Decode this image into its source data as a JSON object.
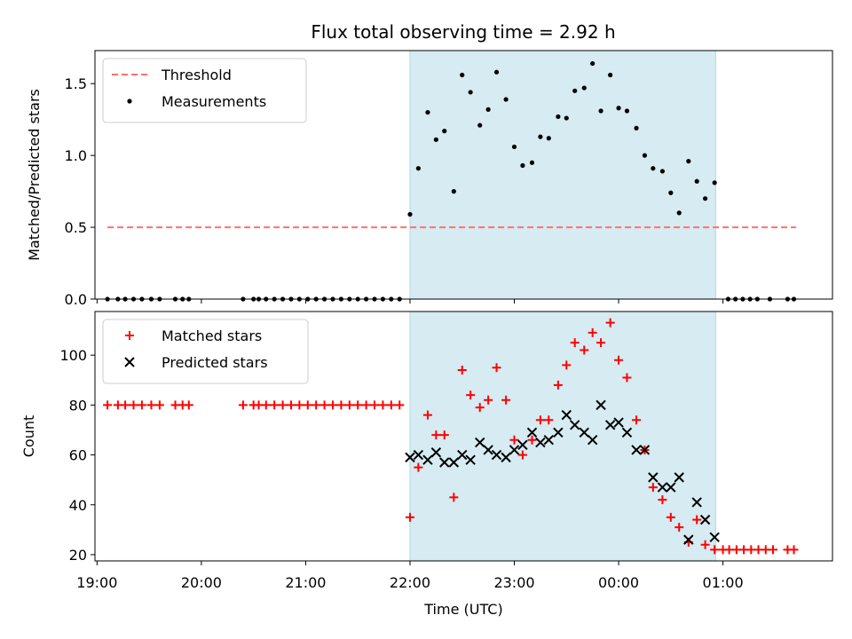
{
  "figure": {
    "title": "Flux total observing time = 2.92 h"
  },
  "colors": {
    "shade": "#add8e6",
    "threshold": "#ff7070",
    "matched": "#ff0000",
    "predicted": "#000000",
    "measurements": "#000000"
  },
  "chart_data": [
    {
      "type": "scatter",
      "panel": "top",
      "ylabel": "Matched/Predicted stars",
      "xlabel": "",
      "ylim": [
        0,
        1.73
      ],
      "yticks": [
        "0.0",
        "0.5",
        "1.0",
        "1.5"
      ],
      "ytick_values": [
        0,
        0.5,
        1.0,
        1.5
      ],
      "grid": false,
      "legend_position": "top-left",
      "shaded_region_utc_hours": [
        22.0,
        24.93
      ],
      "threshold": {
        "name": "Threshold",
        "y": 0.5,
        "x_range_utc_hours": [
          19.1,
          25.7
        ]
      },
      "series": [
        {
          "name": "Measurements",
          "points": [
            [
              19.1,
              0
            ],
            [
              19.2,
              0
            ],
            [
              19.27,
              0
            ],
            [
              19.35,
              0
            ],
            [
              19.43,
              0
            ],
            [
              19.52,
              0
            ],
            [
              19.6,
              0
            ],
            [
              19.75,
              0
            ],
            [
              19.82,
              0
            ],
            [
              19.88,
              0
            ],
            [
              20.4,
              0
            ],
            [
              20.5,
              0
            ],
            [
              20.55,
              0
            ],
            [
              20.62,
              0
            ],
            [
              20.7,
              0
            ],
            [
              20.78,
              0
            ],
            [
              20.86,
              0
            ],
            [
              20.94,
              0
            ],
            [
              21.02,
              0
            ],
            [
              21.1,
              0
            ],
            [
              21.18,
              0
            ],
            [
              21.26,
              0
            ],
            [
              21.34,
              0
            ],
            [
              21.42,
              0
            ],
            [
              21.5,
              0
            ],
            [
              21.58,
              0
            ],
            [
              21.66,
              0
            ],
            [
              21.74,
              0
            ],
            [
              21.82,
              0
            ],
            [
              21.9,
              0
            ],
            [
              22.0,
              0.59
            ],
            [
              22.08,
              0.91
            ],
            [
              22.17,
              1.3
            ],
            [
              22.25,
              1.11
            ],
            [
              22.33,
              1.17
            ],
            [
              22.42,
              0.75
            ],
            [
              22.5,
              1.56
            ],
            [
              22.58,
              1.44
            ],
            [
              22.67,
              1.21
            ],
            [
              22.75,
              1.32
            ],
            [
              22.83,
              1.58
            ],
            [
              22.92,
              1.39
            ],
            [
              23.0,
              1.06
            ],
            [
              23.08,
              0.93
            ],
            [
              23.17,
              0.95
            ],
            [
              23.25,
              1.13
            ],
            [
              23.33,
              1.12
            ],
            [
              23.42,
              1.27
            ],
            [
              23.5,
              1.26
            ],
            [
              23.58,
              1.45
            ],
            [
              23.67,
              1.47
            ],
            [
              23.75,
              1.64
            ],
            [
              23.83,
              1.31
            ],
            [
              23.92,
              1.56
            ],
            [
              24.0,
              1.33
            ],
            [
              24.08,
              1.31
            ],
            [
              24.17,
              1.19
            ],
            [
              24.25,
              1.0
            ],
            [
              24.33,
              0.91
            ],
            [
              24.42,
              0.89
            ],
            [
              24.5,
              0.74
            ],
            [
              24.58,
              0.6
            ],
            [
              24.67,
              0.96
            ],
            [
              24.75,
              0.82
            ],
            [
              24.83,
              0.7
            ],
            [
              24.92,
              0.81
            ],
            [
              25.05,
              0
            ],
            [
              25.12,
              0
            ],
            [
              25.19,
              0
            ],
            [
              25.26,
              0
            ],
            [
              25.33,
              0
            ],
            [
              25.45,
              0
            ],
            [
              25.62,
              0
            ],
            [
              25.68,
              0
            ]
          ]
        }
      ]
    },
    {
      "type": "scatter",
      "panel": "bottom",
      "ylabel": "Count",
      "xlabel": "Time (UTC)",
      "ylim": [
        17.5,
        117.5
      ],
      "yticks": [
        "20",
        "40",
        "60",
        "80",
        "100"
      ],
      "ytick_values": [
        20,
        40,
        60,
        80,
        100
      ],
      "xticks": [
        "19:00",
        "20:00",
        "21:00",
        "22:00",
        "23:00",
        "00:00",
        "01:00"
      ],
      "xtick_values_utc_hours": [
        19,
        20,
        21,
        22,
        23,
        24,
        25
      ],
      "xlim_utc_hours": [
        18.98,
        26.05
      ],
      "grid": false,
      "legend_position": "top-left",
      "shaded_region_utc_hours": [
        22.0,
        24.93
      ],
      "series": [
        {
          "name": "Matched stars",
          "points": [
            [
              19.1,
              80
            ],
            [
              19.2,
              80
            ],
            [
              19.27,
              80
            ],
            [
              19.35,
              80
            ],
            [
              19.43,
              80
            ],
            [
              19.52,
              80
            ],
            [
              19.6,
              80
            ],
            [
              19.75,
              80
            ],
            [
              19.82,
              80
            ],
            [
              19.88,
              80
            ],
            [
              20.4,
              80
            ],
            [
              20.5,
              80
            ],
            [
              20.55,
              80
            ],
            [
              20.62,
              80
            ],
            [
              20.7,
              80
            ],
            [
              20.78,
              80
            ],
            [
              20.86,
              80
            ],
            [
              20.94,
              80
            ],
            [
              21.02,
              80
            ],
            [
              21.1,
              80
            ],
            [
              21.18,
              80
            ],
            [
              21.26,
              80
            ],
            [
              21.34,
              80
            ],
            [
              21.42,
              80
            ],
            [
              21.5,
              80
            ],
            [
              21.58,
              80
            ],
            [
              21.66,
              80
            ],
            [
              21.74,
              80
            ],
            [
              21.82,
              80
            ],
            [
              21.9,
              80
            ],
            [
              22.0,
              35
            ],
            [
              22.08,
              55
            ],
            [
              22.17,
              76
            ],
            [
              22.25,
              68
            ],
            [
              22.33,
              68
            ],
            [
              22.42,
              43
            ],
            [
              22.5,
              94
            ],
            [
              22.58,
              84
            ],
            [
              22.67,
              79
            ],
            [
              22.75,
              82
            ],
            [
              22.83,
              95
            ],
            [
              22.92,
              82
            ],
            [
              23.0,
              66
            ],
            [
              23.08,
              60
            ],
            [
              23.17,
              66
            ],
            [
              23.25,
              74
            ],
            [
              23.33,
              74
            ],
            [
              23.42,
              88
            ],
            [
              23.5,
              96
            ],
            [
              23.58,
              105
            ],
            [
              23.67,
              102
            ],
            [
              23.75,
              109
            ],
            [
              23.83,
              105
            ],
            [
              23.92,
              113
            ],
            [
              24.0,
              98
            ],
            [
              24.08,
              91
            ],
            [
              24.17,
              74
            ],
            [
              24.25,
              62
            ],
            [
              24.33,
              47
            ],
            [
              24.42,
              42
            ],
            [
              24.5,
              35
            ],
            [
              24.58,
              31
            ],
            [
              24.67,
              25
            ],
            [
              24.75,
              34
            ],
            [
              24.83,
              24
            ],
            [
              24.92,
              22
            ],
            [
              25.0,
              22
            ],
            [
              25.06,
              22
            ],
            [
              25.13,
              22
            ],
            [
              25.2,
              22
            ],
            [
              25.27,
              22
            ],
            [
              25.34,
              22
            ],
            [
              25.41,
              22
            ],
            [
              25.48,
              22
            ],
            [
              25.62,
              22
            ],
            [
              25.68,
              22
            ]
          ]
        },
        {
          "name": "Predicted stars",
          "points": [
            [
              22.0,
              59
            ],
            [
              22.08,
              60
            ],
            [
              22.17,
              58
            ],
            [
              22.25,
              61
            ],
            [
              22.33,
              57
            ],
            [
              22.42,
              57
            ],
            [
              22.5,
              60
            ],
            [
              22.58,
              58
            ],
            [
              22.67,
              65
            ],
            [
              22.75,
              62
            ],
            [
              22.83,
              60
            ],
            [
              22.92,
              59
            ],
            [
              23.0,
              62
            ],
            [
              23.08,
              64
            ],
            [
              23.17,
              69
            ],
            [
              23.25,
              65
            ],
            [
              23.33,
              66
            ],
            [
              23.42,
              69
            ],
            [
              23.5,
              76
            ],
            [
              23.58,
              72
            ],
            [
              23.67,
              69
            ],
            [
              23.75,
              66
            ],
            [
              23.83,
              80
            ],
            [
              23.92,
              72
            ],
            [
              24.0,
              73
            ],
            [
              24.08,
              69
            ],
            [
              24.17,
              62
            ],
            [
              24.25,
              62
            ],
            [
              24.33,
              51
            ],
            [
              24.42,
              47
            ],
            [
              24.5,
              47
            ],
            [
              24.58,
              51
            ],
            [
              24.67,
              26
            ],
            [
              24.75,
              41
            ],
            [
              24.83,
              34
            ],
            [
              24.92,
              27
            ]
          ]
        }
      ]
    }
  ]
}
